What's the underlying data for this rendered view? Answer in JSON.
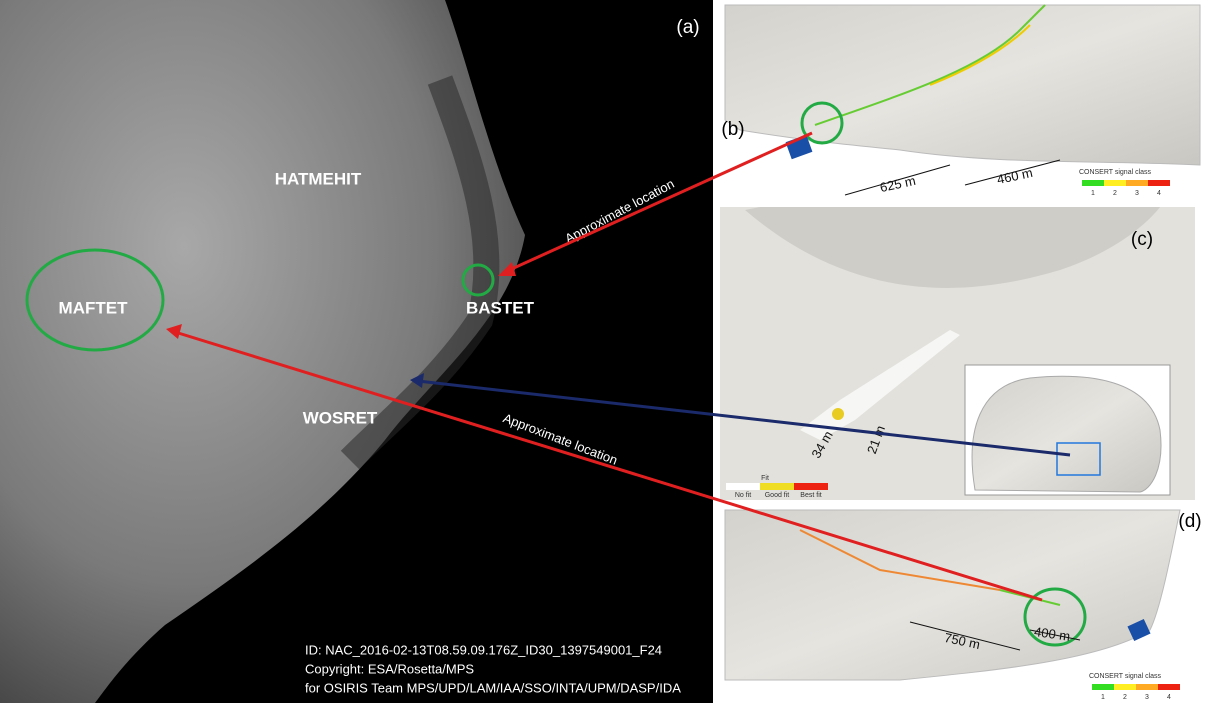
{
  "panel_a": {
    "label": "(a)",
    "regions": [
      "HATMEHIT",
      "MAFTET",
      "BASTET",
      "WOSRET"
    ],
    "annotations": [
      "Approximate location",
      "Approximate location"
    ],
    "credits": [
      "ID: NAC_2016-02-13T08.59.09.176Z_ID30_1397549001_F24",
      "Copyright: ESA/Rosetta/MPS",
      "for OSIRIS Team MPS/UPD/LAM/IAA/SSO/INTA/UPM/DASP/IDA"
    ]
  },
  "panel_b": {
    "label": "(b)",
    "distances": [
      "625 m",
      "460 m"
    ],
    "legend": {
      "title": "CONSERT signal class",
      "classes": [
        "1",
        "2",
        "3",
        "4"
      ]
    }
  },
  "panel_c": {
    "label": "(c)",
    "distances": [
      "34 m",
      "21 m"
    ],
    "legend": {
      "title": "Fit",
      "classes": [
        "No fit",
        "Good fit",
        "Best fit"
      ]
    }
  },
  "panel_d": {
    "label": "(d)",
    "distances": [
      "750 m",
      "400 m"
    ],
    "legend": {
      "title": "CONSERT signal class",
      "classes": [
        "1",
        "2",
        "3",
        "4"
      ]
    }
  }
}
